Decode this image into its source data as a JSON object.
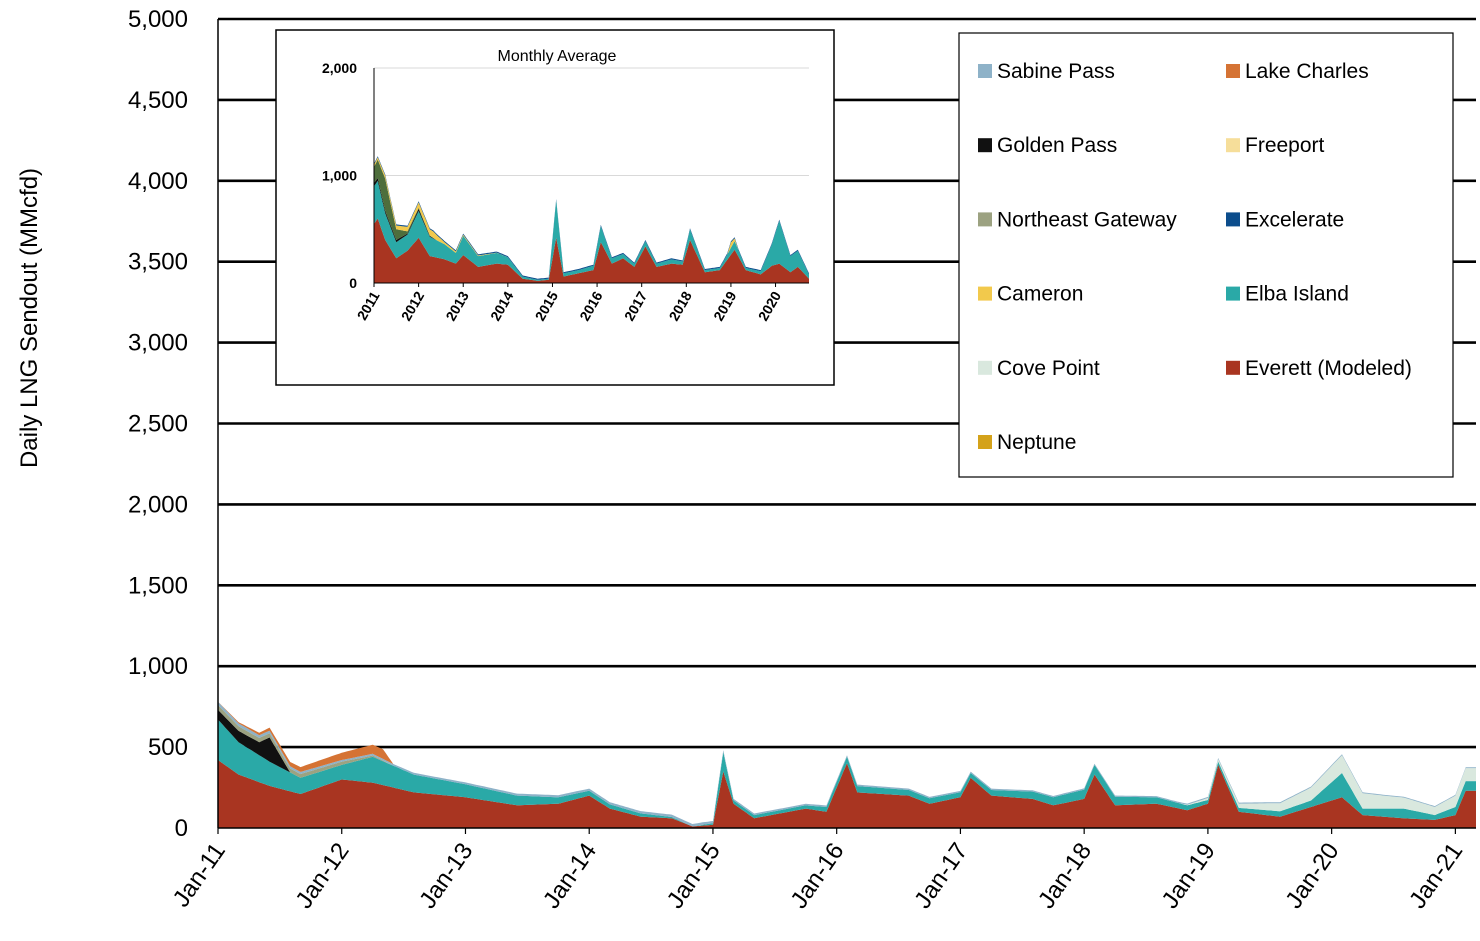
{
  "chart_data": [
    {
      "type": "area",
      "title": "",
      "xlabel": "",
      "ylabel": "Daily LNG Sendout (MMcfd)",
      "ylim": [
        0,
        5000
      ],
      "xlim": [
        "2011-01-01",
        "2021-03-01"
      ],
      "y_ticks": [
        "0",
        "500",
        "1,000",
        "1,500",
        "2,000",
        "2,500",
        "3,000",
        "3,500",
        "4,000",
        "4,500",
        "5,000"
      ],
      "x_ticks": [
        "Jan-11",
        "Jan-12",
        "Jan-13",
        "Jan-14",
        "Jan-15",
        "Jan-16",
        "Jan-17",
        "Jan-18",
        "Jan-19",
        "Jan-20",
        "Jan-21"
      ],
      "grid": true,
      "legend_position": "top-right",
      "stacked": true,
      "series": [
        {
          "name": "Everett (Modeled)",
          "color": "#A93521",
          "points": [
            [
              "2011-01",
              420
            ],
            [
              "2011-03",
              330
            ],
            [
              "2011-06",
              260
            ],
            [
              "2011-09",
              210
            ],
            [
              "2012-01",
              300
            ],
            [
              "2012-04",
              280
            ],
            [
              "2012-08",
              220
            ],
            [
              "2013-01",
              190
            ],
            [
              "2013-06",
              140
            ],
            [
              "2013-10",
              150
            ],
            [
              "2014-01",
              200
            ],
            [
              "2014-03",
              120
            ],
            [
              "2014-06",
              70
            ],
            [
              "2014-09",
              60
            ],
            [
              "2014-11",
              10
            ],
            [
              "2015-01",
              20
            ],
            [
              "2015-02",
              350
            ],
            [
              "2015-03",
              150
            ],
            [
              "2015-05",
              60
            ],
            [
              "2015-10",
              120
            ],
            [
              "2015-12",
              100
            ],
            [
              "2016-02",
              400
            ],
            [
              "2016-03",
              220
            ],
            [
              "2016-08",
              200
            ],
            [
              "2016-10",
              150
            ],
            [
              "2017-01",
              190
            ],
            [
              "2017-02",
              310
            ],
            [
              "2017-04",
              200
            ],
            [
              "2017-08",
              180
            ],
            [
              "2017-10",
              140
            ],
            [
              "2018-01",
              180
            ],
            [
              "2018-02",
              330
            ],
            [
              "2018-04",
              140
            ],
            [
              "2018-08",
              150
            ],
            [
              "2018-11",
              110
            ],
            [
              "2019-01",
              150
            ],
            [
              "2019-02",
              390
            ],
            [
              "2019-04",
              100
            ],
            [
              "2019-08",
              70
            ],
            [
              "2019-11",
              130
            ],
            [
              "2020-02",
              190
            ],
            [
              "2020-04",
              80
            ],
            [
              "2020-08",
              60
            ],
            [
              "2020-11",
              50
            ],
            [
              "2021-01",
              80
            ],
            [
              "2021-02",
              230
            ]
          ]
        },
        {
          "name": "Elba Island",
          "color": "#2AA9A7",
          "points": [
            [
              "2011-01",
              250
            ],
            [
              "2011-03",
              200
            ],
            [
              "2011-06",
              150
            ],
            [
              "2011-09",
              100
            ],
            [
              "2012-01",
              90
            ],
            [
              "2012-04",
              160
            ],
            [
              "2012-08",
              110
            ],
            [
              "2013-01",
              80
            ],
            [
              "2013-06",
              60
            ],
            [
              "2013-10",
              40
            ],
            [
              "2014-01",
              30
            ],
            [
              "2014-06",
              20
            ],
            [
              "2014-11",
              0
            ],
            [
              "2015-01",
              10
            ],
            [
              "2015-02",
              120
            ],
            [
              "2015-03",
              20
            ],
            [
              "2015-10",
              20
            ],
            [
              "2016-02",
              40
            ],
            [
              "2017-02",
              30
            ],
            [
              "2018-02",
              60
            ],
            [
              "2019-02",
              20
            ],
            [
              "2019-11",
              40
            ],
            [
              "2020-02",
              150
            ],
            [
              "2020-04",
              40
            ],
            [
              "2020-08",
              60
            ],
            [
              "2020-11",
              30
            ],
            [
              "2021-02",
              60
            ]
          ]
        },
        {
          "name": "Cove Point",
          "color": "#D9E8DE",
          "points": [
            [
              "2011-01",
              0
            ],
            [
              "2018-10",
              0
            ],
            [
              "2019-03",
              20
            ],
            [
              "2019-08",
              50
            ],
            [
              "2020-02",
              110
            ],
            [
              "2020-06",
              80
            ],
            [
              "2020-11",
              50
            ],
            [
              "2021-02",
              80
            ]
          ]
        },
        {
          "name": "Golden Pass",
          "color": "#111111",
          "points": [
            [
              "2011-01",
              60
            ],
            [
              "2011-05",
              80
            ],
            [
              "2011-06",
              150
            ],
            [
              "2011-08",
              0
            ],
            [
              "2021-02",
              0
            ]
          ]
        },
        {
          "name": "Northeast Gateway",
          "color": "#9CA281",
          "points": [
            [
              "2011-01",
              30
            ],
            [
              "2012-01",
              20
            ],
            [
              "2012-06",
              0
            ],
            [
              "2021-02",
              0
            ]
          ]
        },
        {
          "name": "Sabine Pass",
          "color": "#8EB2C8",
          "points": [
            [
              "2011-01",
              20
            ],
            [
              "2012-01",
              10
            ],
            [
              "2014-12",
              15
            ],
            [
              "2015-03",
              10
            ],
            [
              "2021-02",
              5
            ]
          ]
        },
        {
          "name": "Lake Charles",
          "color": "#D57334",
          "points": [
            [
              "2011-01",
              0
            ],
            [
              "2012-05",
              60
            ],
            [
              "2012-06",
              0
            ],
            [
              "2021-02",
              0
            ]
          ]
        },
        {
          "name": "Freeport",
          "color": "#F6DE9A",
          "points": [
            [
              "2011-01",
              0
            ],
            [
              "2021-02",
              0
            ]
          ]
        },
        {
          "name": "Excelerate",
          "color": "#0C4D8C",
          "points": [
            [
              "2011-01",
              0
            ],
            [
              "2021-02",
              0
            ]
          ]
        },
        {
          "name": "Cameron",
          "color": "#F2C94C",
          "points": [
            [
              "2011-01",
              0
            ],
            [
              "2021-02",
              0
            ]
          ]
        },
        {
          "name": "Neptune",
          "color": "#D4A21A",
          "points": [
            [
              "2011-01",
              0
            ],
            [
              "2021-02",
              0
            ]
          ]
        }
      ]
    },
    {
      "type": "area",
      "title": "Monthly Average",
      "xlabel": "",
      "ylabel": "",
      "ylim": [
        0,
        2000
      ],
      "xlim": [
        "2011-01",
        "2020-10"
      ],
      "y_ticks": [
        "0",
        "1,000",
        "2,000"
      ],
      "x_ticks": [
        "2011",
        "2012",
        "2013",
        "2014",
        "2015",
        "2016",
        "2017",
        "2018",
        "2019",
        "2020"
      ],
      "stacked": true,
      "series": [
        {
          "name": "Everett (Modeled)",
          "color": "#A93521",
          "points": [
            [
              "2011-01",
              550
            ],
            [
              "2011-02",
              600
            ],
            [
              "2011-04",
              400
            ],
            [
              "2011-07",
              230
            ],
            [
              "2011-10",
              300
            ],
            [
              "2012-01",
              420
            ],
            [
              "2012-04",
              250
            ],
            [
              "2012-08",
              220
            ],
            [
              "2012-11",
              180
            ],
            [
              "2013-01",
              260
            ],
            [
              "2013-05",
              150
            ],
            [
              "2013-10",
              180
            ],
            [
              "2014-01",
              170
            ],
            [
              "2014-05",
              40
            ],
            [
              "2014-09",
              20
            ],
            [
              "2014-12",
              30
            ],
            [
              "2015-02",
              420
            ],
            [
              "2015-04",
              60
            ],
            [
              "2015-08",
              90
            ],
            [
              "2015-12",
              120
            ],
            [
              "2016-02",
              380
            ],
            [
              "2016-05",
              180
            ],
            [
              "2016-08",
              230
            ],
            [
              "2016-11",
              150
            ],
            [
              "2017-02",
              340
            ],
            [
              "2017-05",
              150
            ],
            [
              "2017-09",
              180
            ],
            [
              "2017-12",
              170
            ],
            [
              "2018-02",
              400
            ],
            [
              "2018-06",
              100
            ],
            [
              "2018-10",
              120
            ],
            [
              "2019-02",
              310
            ],
            [
              "2019-05",
              120
            ],
            [
              "2019-09",
              80
            ],
            [
              "2019-12",
              160
            ],
            [
              "2020-02",
              180
            ],
            [
              "2020-05",
              100
            ],
            [
              "2020-07",
              150
            ],
            [
              "2020-10",
              40
            ]
          ]
        },
        {
          "name": "Elba Island",
          "color": "#2AA9A7",
          "points": [
            [
              "2011-01",
              350
            ],
            [
              "2011-02",
              350
            ],
            [
              "2011-04",
              250
            ],
            [
              "2011-07",
              150
            ],
            [
              "2011-10",
              150
            ],
            [
              "2012-01",
              250
            ],
            [
              "2012-04",
              180
            ],
            [
              "2012-08",
              140
            ],
            [
              "2012-11",
              100
            ],
            [
              "2013-01",
              180
            ],
            [
              "2013-05",
              100
            ],
            [
              "2013-10",
              100
            ],
            [
              "2014-01",
              70
            ],
            [
              "2014-05",
              20
            ],
            [
              "2014-09",
              10
            ],
            [
              "2014-12",
              10
            ],
            [
              "2015-02",
              350
            ],
            [
              "2015-04",
              30
            ],
            [
              "2015-08",
              30
            ],
            [
              "2015-12",
              40
            ],
            [
              "2016-02",
              150
            ],
            [
              "2016-05",
              50
            ],
            [
              "2016-08",
              40
            ],
            [
              "2016-11",
              30
            ],
            [
              "2017-02",
              50
            ],
            [
              "2017-05",
              30
            ],
            [
              "2017-09",
              40
            ],
            [
              "2017-12",
              30
            ],
            [
              "2018-02",
              100
            ],
            [
              "2018-06",
              20
            ],
            [
              "2018-10",
              20
            ],
            [
              "2019-02",
              80
            ],
            [
              "2019-05",
              20
            ],
            [
              "2019-09",
              30
            ],
            [
              "2019-12",
              200
            ],
            [
              "2020-02",
              400
            ],
            [
              "2020-05",
              150
            ],
            [
              "2020-07",
              150
            ],
            [
              "2020-10",
              40
            ]
          ]
        },
        {
          "name": "Golden Pass",
          "color": "#111111",
          "points": [
            [
              "2011-01",
              30
            ],
            [
              "2011-05",
              20
            ],
            [
              "2011-07",
              20
            ],
            [
              "2011-10",
              10
            ],
            [
              "2012-01",
              20
            ],
            [
              "2012-06",
              0
            ],
            [
              "2020-10",
              0
            ]
          ]
        },
        {
          "name": "Northeast Gateway",
          "color": "#4E6E3C",
          "points": [
            [
              "2011-01",
              150
            ],
            [
              "2011-02",
              170
            ],
            [
              "2011-04",
              300
            ],
            [
              "2011-07",
              100
            ],
            [
              "2011-10",
              20
            ],
            [
              "2012-01",
              10
            ],
            [
              "2012-06",
              0
            ],
            [
              "2020-10",
              0
            ]
          ]
        },
        {
          "name": "Cameron",
          "color": "#F2C94C",
          "points": [
            [
              "2011-01",
              20
            ],
            [
              "2012-05",
              60
            ],
            [
              "2012-08",
              20
            ],
            [
              "2013-01",
              10
            ],
            [
              "2014-01",
              0
            ],
            [
              "2018-12",
              0
            ],
            [
              "2019-01",
              50
            ],
            [
              "2019-03",
              0
            ],
            [
              "2020-10",
              0
            ]
          ]
        },
        {
          "name": "Excelerate",
          "color": "#0C4D8C",
          "points": [
            [
              "2011-01",
              10
            ],
            [
              "2012-01",
              10
            ],
            [
              "2013-01",
              10
            ],
            [
              "2014-01",
              10
            ],
            [
              "2015-01",
              10
            ],
            [
              "2020-10",
              10
            ]
          ]
        }
      ]
    }
  ],
  "legend": {
    "items": [
      {
        "label": "Sabine Pass",
        "color": "#8EB2C8"
      },
      {
        "label": "Lake Charles",
        "color": "#D57334"
      },
      {
        "label": "Golden Pass",
        "color": "#111111"
      },
      {
        "label": "Freeport",
        "color": "#F6DE9A"
      },
      {
        "label": "Northeast Gateway",
        "color": "#9CA281"
      },
      {
        "label": "Excelerate",
        "color": "#0C4D8C"
      },
      {
        "label": "Cameron",
        "color": "#F2C94C"
      },
      {
        "label": "Elba Island",
        "color": "#2AA9A7"
      },
      {
        "label": "Cove Point",
        "color": "#D9E8DE"
      },
      {
        "label": "Everett (Modeled)",
        "color": "#A93521"
      },
      {
        "label": "Neptune",
        "color": "#D4A21A"
      }
    ]
  }
}
